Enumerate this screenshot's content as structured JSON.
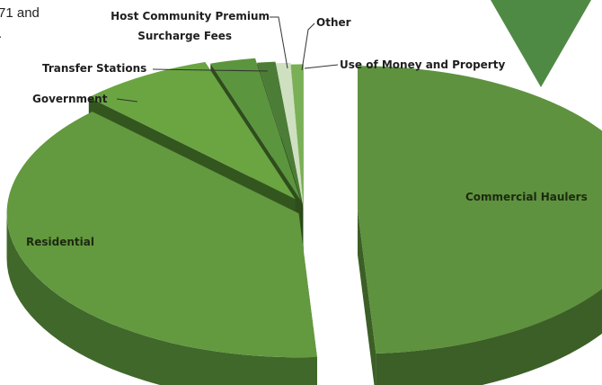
{
  "page": {
    "fragment_line1": "71 and",
    "fragment_line2": "."
  },
  "colors": {
    "corner_triangle": "#4f8a45",
    "top_fills": [
      "#5e923f",
      "#63993f",
      "#6aa542",
      "#5b953e",
      "#4c7d36",
      "#cfe0c0",
      "#79b055"
    ],
    "side_fills": [
      "#3b5f26",
      "#40682a",
      "#33561f",
      "#2f4d1c",
      "#2b4519",
      "#a9c29b",
      "#4a7732"
    ]
  },
  "chart_data": {
    "type": "pie",
    "categories": [
      "Commercial Haulers",
      "Residential",
      "Government",
      "Transfer Stations",
      "Host Community Premium Surcharge Fees",
      "Other",
      "Use of Money and Property"
    ],
    "values": [
      49.0,
      38.5,
      7.5,
      2.5,
      1.0,
      0.8,
      0.7
    ],
    "exploded": true,
    "three_d": true,
    "labels": {
      "commercial": "Commercial Haulers",
      "residential": "Residential",
      "government": "Government",
      "transfer": "Transfer Stations",
      "host_line1": "Host Community Premium",
      "host_line2": "Surcharge Fees",
      "other": "Other",
      "money": "Use of Money and Property"
    }
  }
}
